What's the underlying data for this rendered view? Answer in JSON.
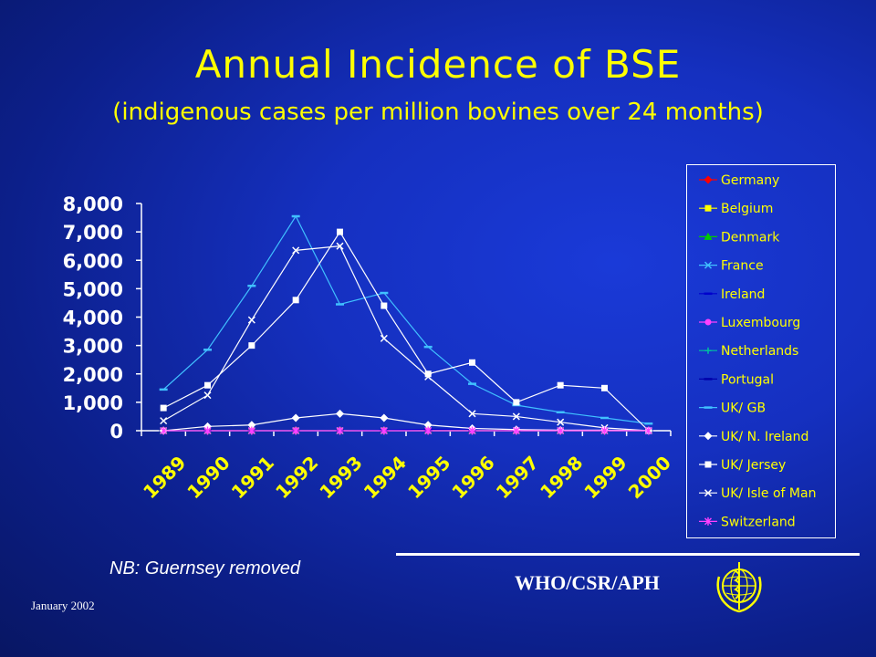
{
  "title": "Annual Incidence of BSE",
  "subtitle": "(indigenous cases per million bovines over 24 months)",
  "note": "NB: Guernsey removed",
  "org": "WHO/CSR/APH",
  "date": "January 2002",
  "chart_data": {
    "type": "line",
    "title": "",
    "xlabel": "",
    "ylabel": "",
    "ylim": [
      0,
      8000
    ],
    "yticks": [
      "0",
      "1,000",
      "2,000",
      "3,000",
      "4,000",
      "5,000",
      "6,000",
      "7,000",
      "8,000"
    ],
    "categories": [
      "1989",
      "1990",
      "1991",
      "1992",
      "1993",
      "1994",
      "1995",
      "1996",
      "1997",
      "1998",
      "1999",
      "2000"
    ],
    "legend_position": "right",
    "series": [
      {
        "name": "Germany",
        "color": "#ff0000",
        "marker": "diamond",
        "values": [
          0,
          0,
          0,
          0,
          0,
          0,
          0,
          0,
          0,
          0,
          0,
          0
        ]
      },
      {
        "name": "Belgium",
        "color": "#ffff00",
        "marker": "square",
        "values": [
          0,
          0,
          0,
          0,
          0,
          0,
          0,
          0,
          0,
          0,
          0,
          0
        ]
      },
      {
        "name": "Denmark",
        "color": "#00cc00",
        "marker": "triangle",
        "values": [
          0,
          0,
          0,
          0,
          0,
          0,
          0,
          0,
          0,
          0,
          0,
          0
        ]
      },
      {
        "name": "France",
        "color": "#40c0ff",
        "marker": "x",
        "values": [
          0,
          0,
          0,
          0,
          0,
          0,
          0,
          0,
          0,
          0,
          0,
          0
        ]
      },
      {
        "name": "Ireland",
        "color": "#0000cc",
        "marker": "dash",
        "values": [
          0,
          0,
          0,
          0,
          0,
          20,
          50,
          60,
          40,
          30,
          20,
          0
        ]
      },
      {
        "name": "Luxembourg",
        "color": "#ff40ff",
        "marker": "circle",
        "values": [
          0,
          0,
          0,
          0,
          0,
          0,
          0,
          0,
          0,
          0,
          0,
          0
        ]
      },
      {
        "name": "Netherlands",
        "color": "#00c0a0",
        "marker": "plus",
        "values": [
          0,
          0,
          0,
          0,
          0,
          0,
          0,
          0,
          0,
          0,
          0,
          0
        ]
      },
      {
        "name": "Portugal",
        "color": "#0000aa",
        "marker": "dash",
        "values": [
          0,
          0,
          0,
          0,
          0,
          0,
          0,
          0,
          0,
          0,
          0,
          0
        ]
      },
      {
        "name": "UK/ GB",
        "color": "#40c0ff",
        "marker": "dash",
        "values": [
          1450,
          2850,
          5100,
          7550,
          4450,
          4850,
          2950,
          1650,
          900,
          650,
          450,
          250
        ]
      },
      {
        "name": "UK/ N. Ireland",
        "color": "#ffffff",
        "marker": "diamond",
        "values": [
          0,
          150,
          200,
          450,
          600,
          450,
          200,
          80,
          40,
          20,
          20,
          0
        ]
      },
      {
        "name": "UK/ Jersey",
        "color": "#ffffff",
        "marker": "square",
        "values": [
          800,
          1600,
          3000,
          4600,
          7000,
          4400,
          2000,
          2400,
          1000,
          1600,
          1500,
          0
        ]
      },
      {
        "name": "UK/ Isle of Man",
        "color": "#ffffff",
        "marker": "x",
        "values": [
          350,
          1250,
          3900,
          6350,
          6500,
          3250,
          1900,
          600,
          500,
          300,
          100,
          0
        ]
      },
      {
        "name": "Switzerland",
        "color": "#ff40ff",
        "marker": "star",
        "values": [
          0,
          0,
          0,
          0,
          0,
          0,
          0,
          0,
          0,
          0,
          0,
          0
        ]
      }
    ]
  }
}
